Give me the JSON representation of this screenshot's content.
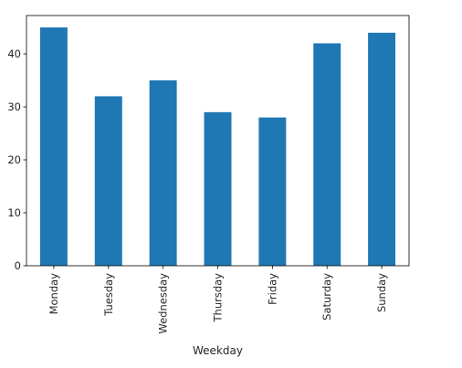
{
  "chart_data": {
    "type": "bar",
    "title": "",
    "xlabel": "Weekday",
    "ylabel": "",
    "categories": [
      "Monday",
      "Tuesday",
      "Wednesday",
      "Thursday",
      "Friday",
      "Saturday",
      "Sunday"
    ],
    "values": [
      45,
      32,
      35,
      29,
      28,
      42,
      44
    ],
    "ylim": [
      0,
      47.25
    ],
    "yticks": [
      0,
      10,
      20,
      30,
      40
    ],
    "ytick_labels": [
      "0",
      "10",
      "20",
      "30",
      "40"
    ],
    "bar_color": "#1f77b4",
    "axis_color": "#000000",
    "tick_label_color": "#262626",
    "grid": false,
    "legend": "none",
    "xtick_rotation": "vertical"
  }
}
